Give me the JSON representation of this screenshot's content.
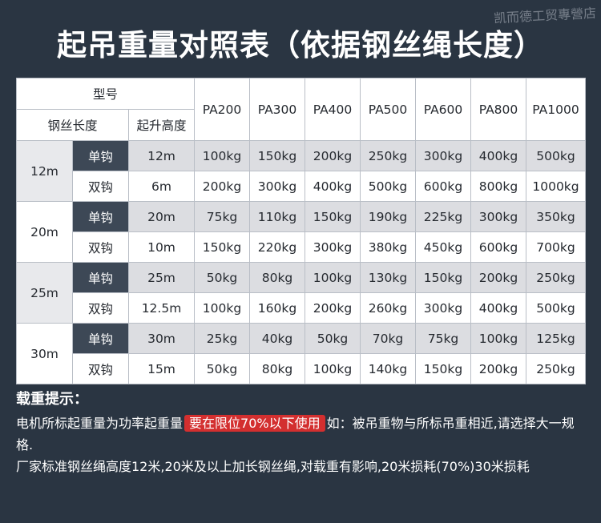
{
  "title": "起吊重量对照表（依据钢丝绳长度）",
  "watermark": "凯而德工贸專營店",
  "table": {
    "header": {
      "model_label": "型号",
      "length_label": "钢丝长度",
      "height_label": "起升高度",
      "models": [
        "PA200",
        "PA300",
        "PA400",
        "PA500",
        "PA600",
        "PA800",
        "PA1000"
      ]
    },
    "groups": [
      {
        "length": "12m",
        "rows": [
          {
            "hook": "单钩",
            "height": "12m",
            "values": [
              "100kg",
              "150kg",
              "200kg",
              "250kg",
              "300kg",
              "400kg",
              "500kg"
            ]
          },
          {
            "hook": "双钩",
            "height": "6m",
            "values": [
              "200kg",
              "300kg",
              "400kg",
              "500kg",
              "600kg",
              "800kg",
              "1000kg"
            ]
          }
        ]
      },
      {
        "length": "20m",
        "rows": [
          {
            "hook": "单钩",
            "height": "20m",
            "values": [
              "75kg",
              "110kg",
              "150kg",
              "190kg",
              "225kg",
              "300kg",
              "350kg"
            ]
          },
          {
            "hook": "双钩",
            "height": "10m",
            "values": [
              "150kg",
              "220kg",
              "300kg",
              "380kg",
              "450kg",
              "600kg",
              "700kg"
            ]
          }
        ]
      },
      {
        "length": "25m",
        "rows": [
          {
            "hook": "单钩",
            "height": "25m",
            "values": [
              "50kg",
              "80kg",
              "100kg",
              "130kg",
              "150kg",
              "200kg",
              "250kg"
            ]
          },
          {
            "hook": "双钩",
            "height": "12.5m",
            "values": [
              "100kg",
              "160kg",
              "200kg",
              "260kg",
              "300kg",
              "400kg",
              "500kg"
            ]
          }
        ]
      },
      {
        "length": "30m",
        "rows": [
          {
            "hook": "单钩",
            "height": "30m",
            "values": [
              "25kg",
              "40kg",
              "50kg",
              "70kg",
              "75kg",
              "100kg",
              "125kg"
            ]
          },
          {
            "hook": "双钩",
            "height": "15m",
            "values": [
              "50kg",
              "80kg",
              "100kg",
              "140kg",
              "150kg",
              "200kg",
              "250kg"
            ]
          }
        ]
      }
    ]
  },
  "notes": {
    "title": "载重提示：",
    "line1_before": "电机所标起重量为功率起重量",
    "line1_highlight": "要在限位70%以下使用",
    "line1_after": "如：被吊重物与所标吊重相近,请选择大一规格.",
    "line2": "厂家标准钢丝绳高度12米,20米及以上加长钢丝绳,对载重有影响,20米损耗(70%)30米损耗"
  },
  "colors": {
    "background": "#2a3542",
    "hook_cell_dark": "#3d4856",
    "row_shade": "#dcdde1",
    "highlight": "#d32f2f"
  }
}
